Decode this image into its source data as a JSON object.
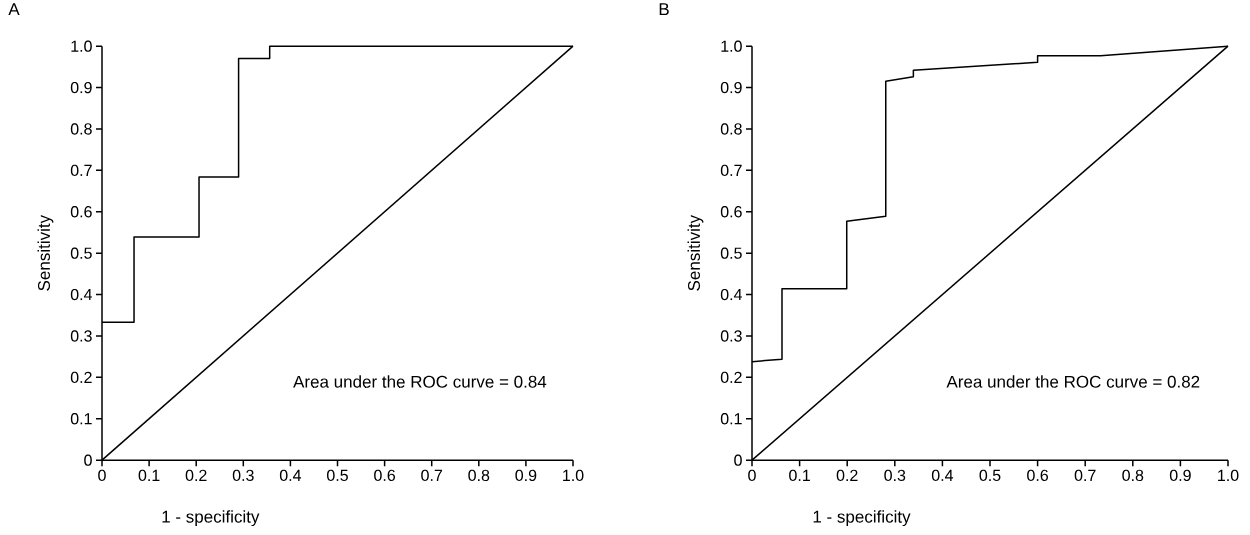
{
  "chart_data": [
    {
      "type": "line",
      "title": "A",
      "xlabel": "1 - specificity",
      "ylabel": "Sensitivity",
      "annotations": [
        "Area under the ROC curve = 0.84"
      ],
      "xlim": [
        0,
        1
      ],
      "ylim": [
        0,
        1
      ],
      "xticks": [
        0,
        0.1,
        0.2,
        0.3,
        0.4,
        0.5,
        0.6,
        0.7,
        0.8,
        0.9,
        {
          "value": 1,
          "label": "1.0"
        }
      ],
      "yticks": [
        0,
        0.1,
        0.2,
        0.3,
        0.4,
        0.5,
        0.6,
        0.7,
        0.8,
        0.9,
        {
          "value": 1,
          "label": "1.0"
        }
      ],
      "series": [
        {
          "color": "#000000",
          "x": [
            0,
            0.068,
            0.068,
            0.206,
            0.206,
            0.29,
            0.29,
            0.356,
            0.356,
            1
          ],
          "values": [
            0.333,
            0.333,
            0.539,
            0.539,
            0.684,
            0.684,
            0.97,
            0.97,
            1,
            1
          ]
        },
        {
          "color": "#000000",
          "x": [
            0,
            1
          ],
          "values": [
            0,
            1
          ]
        }
      ]
    },
    {
      "type": "line",
      "title": "B",
      "xlabel": "1 - specificity",
      "ylabel": "Sensitivity",
      "annotations": [
        "Area under the ROC curve = 0.82"
      ],
      "xlim": [
        0,
        1
      ],
      "ylim": [
        0,
        1
      ],
      "xticks": [
        0,
        0.1,
        0.2,
        0.3,
        0.4,
        0.5,
        0.6,
        0.7,
        0.8,
        0.9,
        {
          "value": 1,
          "label": "1.0"
        }
      ],
      "yticks": [
        0,
        0.1,
        0.2,
        0.3,
        0.4,
        0.5,
        0.6,
        0.7,
        0.8,
        0.9,
        {
          "value": 1,
          "label": "1.0"
        }
      ],
      "series": [
        {
          "color": "#000000",
          "x": [
            0,
            0.063,
            0.063,
            0.199,
            0.199,
            0.281,
            0.281,
            0.339,
            0.339,
            0.6,
            0.6,
            0.732,
            1
          ],
          "values": [
            0.238,
            0.244,
            0.414,
            0.414,
            0.577,
            0.589,
            0.915,
            0.926,
            0.942,
            0.961,
            0.977,
            0.977,
            1
          ]
        },
        {
          "color": "#000000",
          "x": [
            0,
            1
          ],
          "values": [
            0,
            1
          ]
        }
      ]
    }
  ]
}
